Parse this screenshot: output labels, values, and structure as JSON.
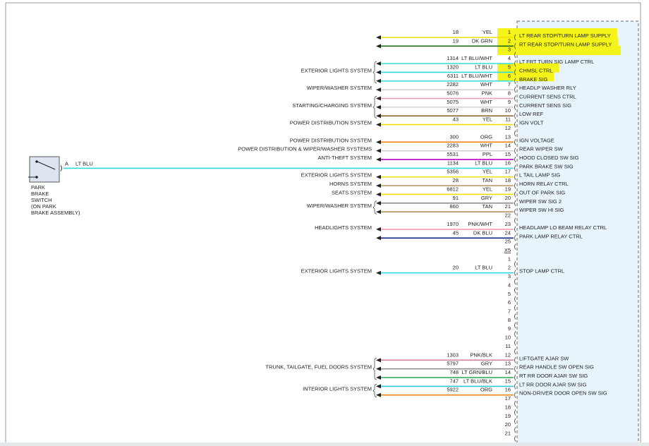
{
  "connectors": [
    {
      "pins": [
        {
          "pin": "1",
          "circuit": "18",
          "color": "YEL",
          "line": "#f0e000",
          "function": "LT REAR STOP/TURN LAMP SUPPLY",
          "highlight": true
        },
        {
          "pin": "2",
          "circuit": "19",
          "color": "DK GRN",
          "line": "#1a6b1a",
          "function": "RT REAR STOP/TURN LAMP SUPPLY",
          "highlight": true
        },
        {
          "pin": "3",
          "highlight": true
        },
        {
          "pin": "4",
          "circuit": "1314",
          "color": "LT BLU/WHT",
          "line": "#40e0e0",
          "function": "LT FRT TURN SIG LAMP CTRL"
        },
        {
          "pin": "5",
          "circuit": "1320",
          "color": "LT BLU",
          "line": "#30d8e8",
          "function": "CHMSL CTRL",
          "highlight": true
        },
        {
          "pin": "6",
          "circuit": "6311",
          "color": "LT BLU/WHT",
          "line": "#40e0e0",
          "function": "BRAKE SIG",
          "highlight": true
        },
        {
          "pin": "7",
          "circuit": "2282",
          "color": "WHT",
          "line": "#d0d0d0",
          "function": "HEADLP WASHER RLY"
        },
        {
          "pin": "8",
          "circuit": "5076",
          "color": "PNK",
          "line": "#f0a0b0",
          "function": "CURRENT SENS CTRL"
        },
        {
          "pin": "9",
          "circuit": "5075",
          "color": "WHT",
          "line": "#d0d0d0",
          "function": "CURRENT SENS SIG"
        },
        {
          "pin": "10",
          "circuit": "5077",
          "color": "BRN",
          "line": "#8b5a2b",
          "function": "LOW REF"
        },
        {
          "pin": "11",
          "circuit": "43",
          "color": "YEL",
          "line": "#f0e000",
          "function": "IGN VOLT"
        },
        {
          "pin": "12"
        },
        {
          "pin": "13",
          "circuit": "300",
          "color": "ORG",
          "line": "#f08000",
          "function": "IGN VOLTAGE"
        },
        {
          "pin": "14",
          "circuit": "2283",
          "color": "WHT",
          "line": "#d0d0d0",
          "function": "REAR WIPER SW"
        },
        {
          "pin": "15",
          "circuit": "5531",
          "color": "PPL",
          "line": "#c000c0",
          "function": "HOOD CLOSED SW SIG"
        },
        {
          "pin": "16",
          "circuit": "1134",
          "color": "LT BLU",
          "line": "#30d8e8",
          "function": "PARK BRAKE SW SIG"
        },
        {
          "pin": "17",
          "circuit": "5356",
          "color": "YEL",
          "line": "#f0e000",
          "function": "L TAIL LAMP SIG"
        },
        {
          "pin": "18",
          "circuit": "28",
          "color": "TAN",
          "line": "#b89060",
          "function": "HORN RELAY CTRL"
        },
        {
          "pin": "19",
          "circuit": "6812",
          "color": "YEL",
          "line": "#f0e000",
          "function": "OUT OF PARK SIG"
        },
        {
          "pin": "20",
          "circuit": "91",
          "color": "GRY",
          "line": "#909090",
          "function": "WIPER SW SIG 2"
        },
        {
          "pin": "21",
          "circuit": "860",
          "color": "TAN",
          "line": "#b89060",
          "function": "WIPER SW HI SIG"
        },
        {
          "pin": "22"
        },
        {
          "pin": "23",
          "circuit": "1970",
          "color": "PNK/WHT",
          "line": "#f0a0b0",
          "function": "HEADLAMP LO BEAM RELAY CTRL"
        },
        {
          "pin": "24",
          "circuit": "45",
          "color": "DK BLU",
          "line": "#102080",
          "function": "PARK LAMP RELAY CTRL"
        },
        {
          "pin": "25"
        }
      ],
      "systems": [
        {
          "label": "EXTERIOR LIGHTS SYSTEM",
          "pins": [
            "4",
            "5",
            "6"
          ]
        },
        {
          "label": "WIPER/WASHER SYSTEM",
          "pins": [
            "7"
          ]
        },
        {
          "label": "STARTING/CHARGING SYSTEM",
          "pins": [
            "8",
            "9",
            "10"
          ]
        },
        {
          "label": "POWER DISTRIBUTION SYSTEM",
          "pins": [
            "11"
          ]
        },
        {
          "label": "POWER DISTRIBUTION SYSTEM",
          "pins": [
            "13"
          ]
        },
        {
          "label": "POWER DISTRIBUTION & WIPER/WASHER SYSTEMS",
          "pins": [
            "14"
          ]
        },
        {
          "label": "ANTI-THEFT SYSTEM",
          "pins": [
            "15"
          ]
        },
        {
          "label": "EXTERIOR LIGHTS SYSTEM",
          "pins": [
            "17"
          ]
        },
        {
          "label": "HORNS SYSTEM",
          "pins": [
            "18"
          ]
        },
        {
          "label": "SEATS SYSTEM",
          "pins": [
            "19"
          ]
        },
        {
          "label": "WIPER/WASHER SYSTEM",
          "pins": [
            "20",
            "21"
          ]
        },
        {
          "label": "HEADLIGHTS SYSTEM",
          "pins": [
            "23"
          ]
        }
      ]
    },
    {
      "label": "X5",
      "pins": [
        {
          "pin": "1"
        },
        {
          "pin": "2",
          "circuit": "20",
          "color": "LT BLU",
          "line": "#30d8e8",
          "function": "STOP LAMP CTRL"
        },
        {
          "pin": "3"
        },
        {
          "pin": "4"
        },
        {
          "pin": "5"
        },
        {
          "pin": "6"
        },
        {
          "pin": "7"
        },
        {
          "pin": "8"
        },
        {
          "pin": "9"
        },
        {
          "pin": "10"
        },
        {
          "pin": "11"
        },
        {
          "pin": "12",
          "circuit": "1303",
          "color": "PNK/BLK",
          "line": "#d080a0",
          "function": "LIFTGATE AJAR SW"
        },
        {
          "pin": "13",
          "circuit": "5797",
          "color": "GRY",
          "line": "#909090",
          "function": "REAR HANDLE SW OPEN SIG"
        },
        {
          "pin": "14",
          "circuit": "748",
          "color": "LT GRN/BLU",
          "line": "#30b060",
          "function": "RT RR DOOR AJAR SW SIG"
        },
        {
          "pin": "15",
          "circuit": "747",
          "color": "LT BLU/BLK",
          "line": "#30c8d8",
          "function": "LT RR DOOR AJAR SW SIG"
        },
        {
          "pin": "16",
          "circuit": "5922",
          "color": "ORG",
          "line": "#f08000",
          "function": "NON-DRIVER DOOR OPEN SW SIG"
        },
        {
          "pin": "17"
        },
        {
          "pin": "18"
        },
        {
          "pin": "19"
        },
        {
          "pin": "20"
        },
        {
          "pin": "21"
        }
      ],
      "systems": [
        {
          "label": "EXTERIOR LIGHTS SYSTEM",
          "pins": [
            "2"
          ]
        },
        {
          "label": "TRUNK, TAILGATE, FUEL DOORS SYSTEM",
          "pins": [
            "12",
            "13",
            "14"
          ]
        },
        {
          "label": "INTERIOR LIGHTS SYSTEM",
          "pins": [
            "15",
            "16"
          ]
        }
      ]
    }
  ],
  "switch": {
    "terminal": "A",
    "color": "LT BLU",
    "connects_to": "16",
    "label": [
      "PARK",
      "BRAKE",
      "SWITCH",
      "(ON PARK",
      "BRAKE ASSEMBLY)"
    ]
  }
}
